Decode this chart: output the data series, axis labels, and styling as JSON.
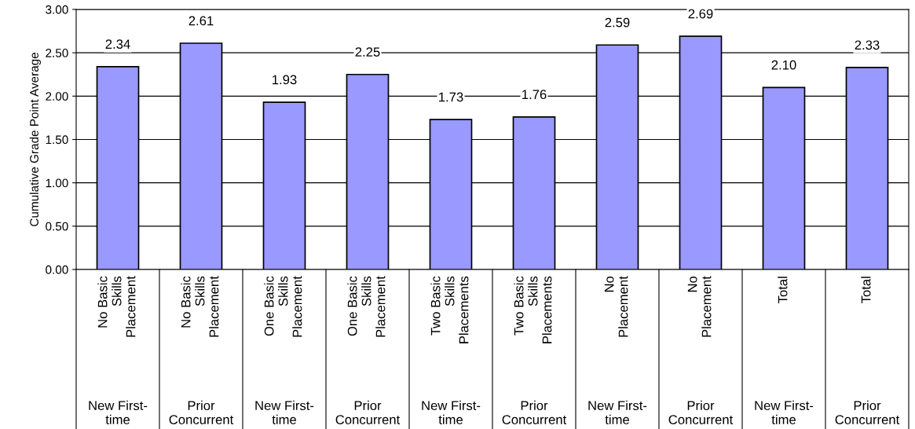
{
  "chart_data": {
    "type": "bar",
    "ylabel": "Cumulative Grade Point Average",
    "categories": [
      "No Basic\nSkills\nPlacement",
      "No Basic\nSkills\nPlacement",
      "One Basic\nSkills\nPlacement",
      "One Basic\nSkills\nPlacement",
      "Two Basic\nSkills\nPlacements",
      "Two Basic\nSkills\nPlacements",
      "No\nPlacement",
      "No\nPlacement",
      "Total",
      "Total"
    ],
    "annotations": [
      "New First-\ntime",
      "Prior\nConcurrent",
      "New First-\ntime",
      "Prior\nConcurrent",
      "New First-\ntime",
      "Prior\nConcurrent",
      "New First-\ntime",
      "Prior\nConcurrent",
      "New First-\ntime",
      "Prior\nConcurrent"
    ],
    "values": [
      2.34,
      2.61,
      1.93,
      2.25,
      1.73,
      1.76,
      2.59,
      2.69,
      2.1,
      2.33
    ],
    "value_labels": [
      "2.34",
      "2.61",
      "1.93",
      "2.25",
      "1.73",
      "1.76",
      "2.59",
      "2.69",
      "2.10",
      "2.33"
    ],
    "color": "#9999ff",
    "ylim": [
      0,
      3
    ],
    "yticks": [
      {
        "value": 0,
        "label": "0.00"
      },
      {
        "value": 0.5,
        "label": "0.50"
      },
      {
        "value": 1,
        "label": "1.00"
      },
      {
        "value": 1.5,
        "label": "1.50"
      },
      {
        "value": 2,
        "label": "2.00"
      },
      {
        "value": 2.5,
        "label": "2.50"
      },
      {
        "value": 3,
        "label": "3.00"
      }
    ],
    "grid": "y"
  }
}
